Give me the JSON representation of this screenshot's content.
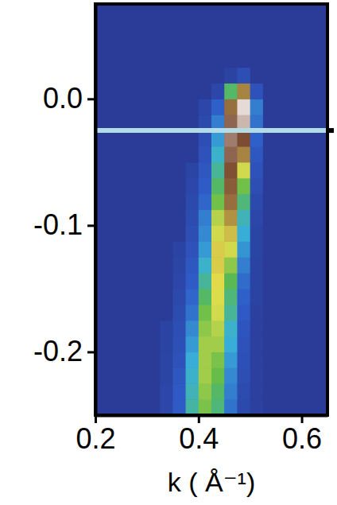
{
  "chart_data": {
    "type": "heatmap",
    "xlabel": "k ( Å⁻¹)",
    "xlim": [
      0.2,
      0.65
    ],
    "xticks": [
      0.2,
      0.4,
      0.6
    ],
    "ylim": [
      -0.25,
      0.075
    ],
    "yticks": [
      {
        "value": 0,
        "label": "0.0"
      },
      -0.1,
      -0.2
    ],
    "zlim": [
      0,
      100
    ],
    "x_bins": [
      0.2,
      0.225,
      0.25,
      0.275,
      0.3,
      0.325,
      0.35,
      0.375,
      0.4,
      0.425,
      0.45,
      0.475,
      0.5,
      0.525,
      0.55,
      0.575,
      0.6,
      0.625,
      0.65
    ],
    "y_bins": [
      -0.25,
      -0.2375,
      -0.225,
      -0.2125,
      -0.2,
      -0.1875,
      -0.175,
      -0.1625,
      -0.15,
      -0.1375,
      -0.125,
      -0.1125,
      -0.1,
      -0.0875,
      -0.075,
      -0.0625,
      -0.05,
      -0.0375,
      -0.025,
      -0.0125,
      0,
      0.0125,
      0.025,
      0.0375,
      0.05,
      0.0625,
      0.075
    ],
    "z": [
      [
        0,
        0,
        0,
        0,
        0,
        5,
        14,
        34,
        46,
        38,
        18,
        6,
        2,
        0,
        0,
        0,
        0,
        0
      ],
      [
        0,
        0,
        0,
        0,
        0,
        5,
        13,
        32,
        48,
        40,
        20,
        7,
        2,
        0,
        0,
        0,
        0,
        0
      ],
      [
        0,
        0,
        0,
        0,
        0,
        4,
        12,
        30,
        50,
        44,
        22,
        8,
        2,
        0,
        0,
        0,
        0,
        0
      ],
      [
        0,
        0,
        0,
        0,
        0,
        4,
        10,
        28,
        50,
        46,
        25,
        9,
        2,
        0,
        0,
        0,
        0,
        0
      ],
      [
        0,
        0,
        0,
        0,
        0,
        3,
        9,
        25,
        50,
        50,
        28,
        10,
        2,
        0,
        0,
        0,
        0,
        0
      ],
      [
        0,
        0,
        0,
        0,
        0,
        3,
        8,
        22,
        48,
        52,
        30,
        11,
        2,
        0,
        0,
        0,
        0,
        0
      ],
      [
        0,
        0,
        0,
        0,
        0,
        0,
        7,
        18,
        45,
        55,
        35,
        13,
        2,
        0,
        0,
        0,
        0,
        0
      ],
      [
        0,
        0,
        0,
        0,
        0,
        0,
        6,
        16,
        40,
        56,
        38,
        15,
        3,
        0,
        0,
        0,
        0,
        0
      ],
      [
        0,
        0,
        0,
        0,
        0,
        0,
        5,
        14,
        35,
        58,
        42,
        17,
        3,
        0,
        0,
        0,
        0,
        0
      ],
      [
        0,
        0,
        0,
        0,
        0,
        0,
        4,
        12,
        30,
        60,
        48,
        20,
        3,
        0,
        0,
        0,
        0,
        0
      ],
      [
        0,
        0,
        0,
        0,
        0,
        0,
        3,
        10,
        25,
        60,
        55,
        24,
        4,
        0,
        0,
        0,
        0,
        0
      ],
      [
        0,
        0,
        0,
        0,
        0,
        0,
        0,
        8,
        22,
        55,
        62,
        28,
        4,
        0,
        0,
        0,
        0,
        0
      ],
      [
        0,
        0,
        0,
        0,
        0,
        0,
        0,
        7,
        20,
        52,
        68,
        32,
        5,
        0,
        0,
        0,
        0,
        0
      ],
      [
        0,
        0,
        0,
        0,
        0,
        0,
        0,
        6,
        16,
        45,
        75,
        38,
        6,
        0,
        0,
        0,
        0,
        0
      ],
      [
        0,
        0,
        0,
        0,
        0,
        0,
        0,
        5,
        14,
        40,
        80,
        45,
        8,
        0,
        0,
        0,
        0,
        0
      ],
      [
        0,
        0,
        0,
        0,
        0,
        0,
        0,
        4,
        12,
        35,
        84,
        55,
        10,
        0,
        0,
        0,
        0,
        0
      ],
      [
        0,
        0,
        0,
        0,
        0,
        0,
        0,
        0,
        10,
        30,
        88,
        70,
        12,
        0,
        0,
        0,
        0,
        0
      ],
      [
        0,
        0,
        0,
        0,
        0,
        0,
        0,
        0,
        8,
        25,
        90,
        85,
        15,
        0,
        0,
        0,
        0,
        0
      ],
      [
        0,
        0,
        0,
        0,
        0,
        0,
        0,
        0,
        6,
        20,
        88,
        95,
        18,
        0,
        0,
        0,
        0,
        0
      ],
      [
        0,
        0,
        0,
        0,
        0,
        0,
        0,
        0,
        5,
        15,
        75,
        98,
        20,
        0,
        0,
        0,
        0,
        0
      ],
      [
        0,
        0,
        0,
        0,
        0,
        0,
        0,
        0,
        0,
        5,
        40,
        70,
        10,
        0,
        0,
        0,
        0,
        0
      ],
      [
        0,
        0,
        0,
        0,
        0,
        0,
        0,
        0,
        0,
        0,
        3,
        8,
        0,
        0,
        0,
        0,
        0,
        0
      ],
      [
        0,
        0,
        0,
        0,
        0,
        0,
        0,
        0,
        0,
        0,
        0,
        0,
        0,
        0,
        0,
        0,
        0,
        0
      ],
      [
        0,
        0,
        0,
        0,
        0,
        0,
        0,
        0,
        0,
        0,
        0,
        0,
        0,
        0,
        0,
        0,
        0,
        0
      ],
      [
        0,
        0,
        0,
        0,
        0,
        0,
        0,
        0,
        0,
        0,
        0,
        0,
        0,
        0,
        0,
        0,
        0,
        0
      ],
      [
        0,
        0,
        0,
        0,
        0,
        0,
        0,
        0,
        0,
        0,
        0,
        0,
        0,
        0,
        0,
        0,
        0,
        0
      ]
    ],
    "hlines": [
      {
        "y": -0.025,
        "color": "#b4dce6"
      }
    ]
  }
}
